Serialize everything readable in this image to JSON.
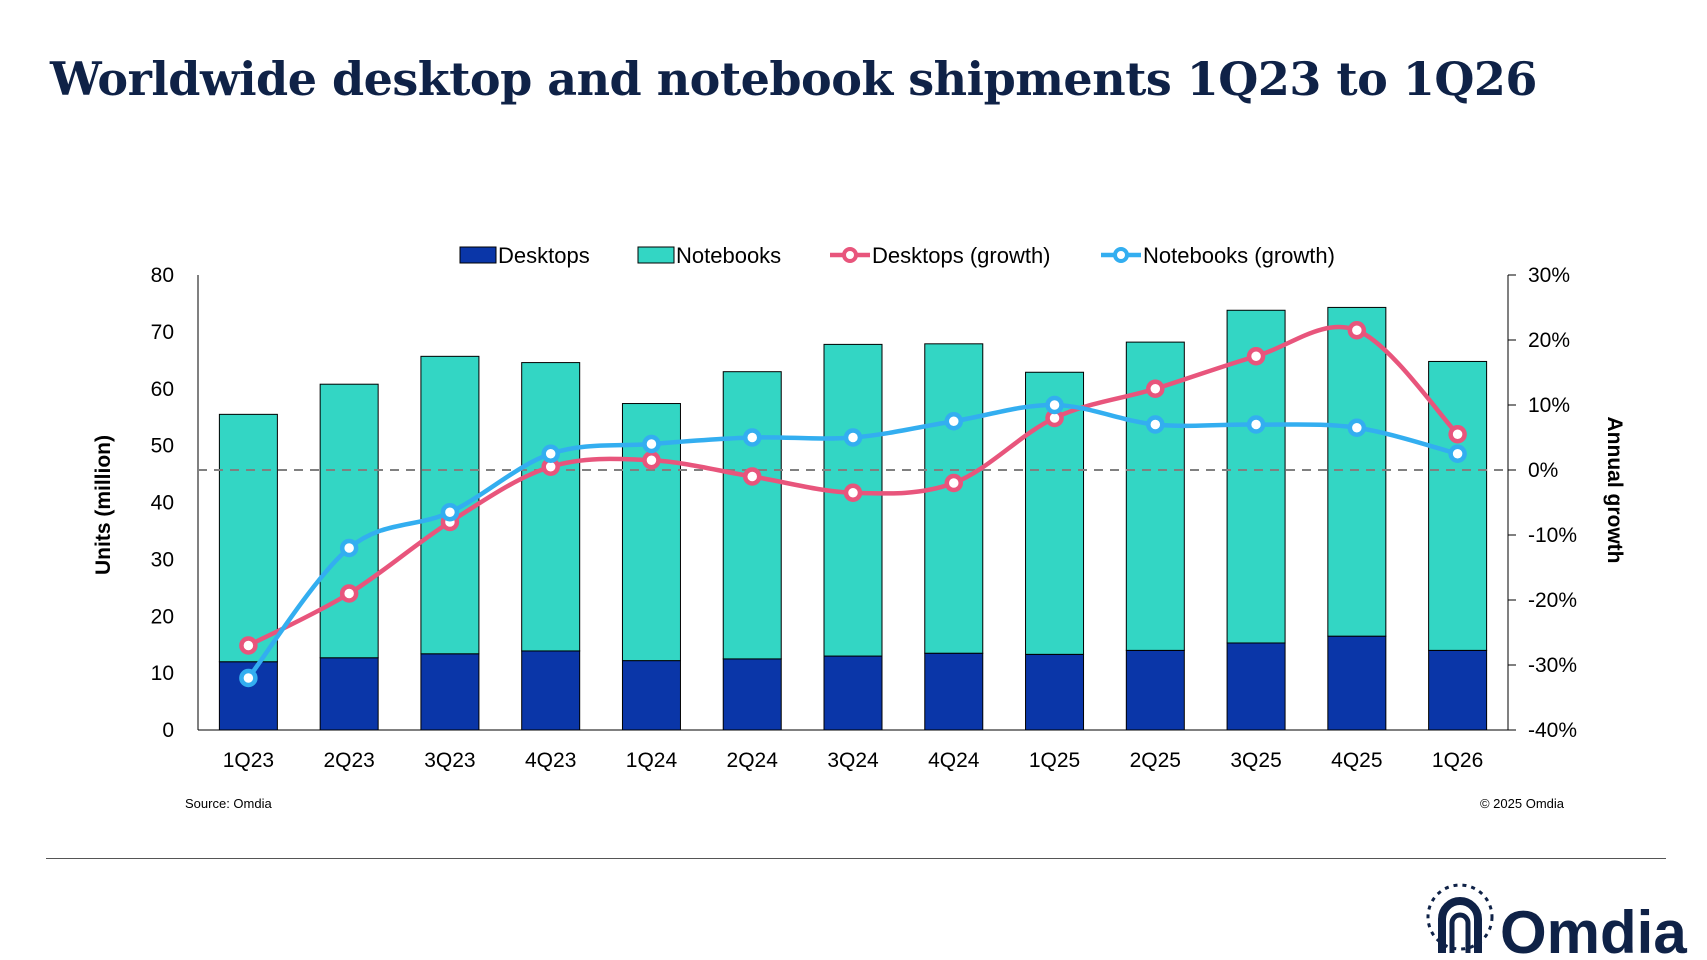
{
  "title": "Worldwide desktop and notebook shipments 1Q23 to 1Q26",
  "source_note": "Source: Omdia",
  "copyright_note": "© 2025 Omdia",
  "brand": "Omdia",
  "colors": {
    "desktops": "#0a36a8",
    "notebooks": "#33d6c4",
    "desktops_growth": "#e8557c",
    "notebooks_growth": "#33aef0",
    "title": "#0f2247"
  },
  "chart_data": {
    "type": "bar",
    "stacked": true,
    "title": "Worldwide desktop and notebook shipments 1Q23 to 1Q26",
    "categories": [
      "1Q23",
      "2Q23",
      "3Q23",
      "4Q23",
      "1Q24",
      "2Q24",
      "3Q24",
      "4Q24",
      "1Q25",
      "2Q25",
      "3Q25",
      "4Q25",
      "1Q26"
    ],
    "series": [
      {
        "name": "Desktops",
        "type": "bar",
        "axis": "left",
        "values": [
          12.0,
          12.7,
          13.4,
          13.9,
          12.2,
          12.5,
          13.0,
          13.5,
          13.3,
          14.0,
          15.3,
          16.5,
          14.0
        ]
      },
      {
        "name": "Notebooks",
        "type": "bar",
        "axis": "left",
        "values": [
          43.5,
          48.1,
          52.3,
          50.7,
          45.2,
          50.5,
          54.8,
          54.4,
          49.6,
          54.2,
          58.5,
          57.8,
          50.8
        ]
      },
      {
        "name": "Desktops (growth)",
        "type": "line",
        "axis": "right",
        "values": [
          -27,
          -19,
          -8,
          0.5,
          1.5,
          -1,
          -3.5,
          -2,
          8,
          12.5,
          17.5,
          21.5,
          5.5
        ]
      },
      {
        "name": "Notebooks (growth)",
        "type": "line",
        "axis": "right",
        "values": [
          -32,
          -12,
          -6.5,
          2.5,
          4,
          5,
          5,
          7.5,
          10,
          7,
          7,
          6.5,
          2.5
        ]
      }
    ],
    "ylabel": "Units (million)",
    "ylim": [
      0,
      80
    ],
    "yticks": [
      "0",
      "10",
      "20",
      "30",
      "40",
      "50",
      "60",
      "70",
      "80"
    ],
    "y2label": "Annual growth",
    "y2lim": [
      -40,
      30
    ],
    "y2ticks": [
      "-40%",
      "-30%",
      "-20%",
      "-10%",
      "0%",
      "10%",
      "20%",
      "30%"
    ],
    "zero_line": "dashed",
    "grid": false,
    "legend": "top-center"
  }
}
